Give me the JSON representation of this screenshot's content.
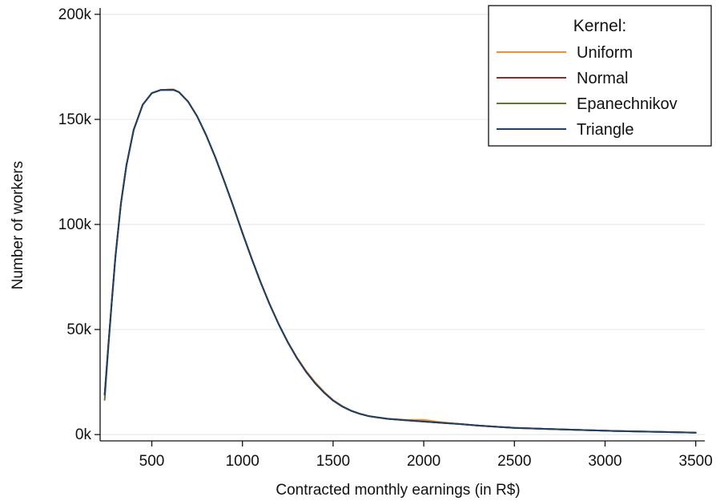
{
  "chart_data": {
    "type": "line",
    "xlabel": "Contracted monthly earnings (in R$)",
    "ylabel": "Number of workers",
    "xlim": [
      215,
      3550
    ],
    "ylim": [
      -3000,
      203000
    ],
    "x_ticks": [
      500,
      1000,
      1500,
      2000,
      2500,
      3000,
      3500
    ],
    "x_tick_labels": [
      "500",
      "1000",
      "1500",
      "2000",
      "2500",
      "3000",
      "3500"
    ],
    "y_ticks": [
      0,
      50000,
      100000,
      150000,
      200000
    ],
    "y_tick_labels": [
      "0k",
      "50k",
      "100k",
      "150k",
      "200k"
    ],
    "grid": true,
    "legend": {
      "title": "Kernel:",
      "position": "top-right"
    },
    "series": [
      {
        "name": "Uniform",
        "color": "#f28e2b",
        "x": [
          240,
          260,
          280,
          300,
          330,
          360,
          400,
          450,
          500,
          550,
          600,
          620,
          650,
          700,
          750,
          800,
          850,
          900,
          950,
          1000,
          1050,
          1100,
          1150,
          1200,
          1250,
          1300,
          1350,
          1400,
          1450,
          1500,
          1550,
          1600,
          1650,
          1700,
          1800,
          1850,
          1900,
          1950,
          2000,
          2050,
          2100,
          2200,
          2300,
          2400,
          2500,
          2700,
          2900,
          3100,
          3300,
          3500
        ],
        "y": [
          19000,
          42000,
          64000,
          85000,
          110000,
          128000,
          145000,
          157000,
          162500,
          164000,
          164200,
          164300,
          163000,
          158500,
          151500,
          142500,
          132000,
          120500,
          108500,
          96000,
          84000,
          72500,
          62000,
          52500,
          44000,
          36800,
          30500,
          25000,
          20400,
          16500,
          13600,
          11400,
          9800,
          8700,
          7600,
          7300,
          7000,
          7000,
          7000,
          6400,
          5900,
          5000,
          4300,
          3700,
          3100,
          2600,
          2100,
          1600,
          1300,
          900
        ]
      },
      {
        "name": "Normal",
        "color": "#8b2c2c",
        "x": [
          240,
          260,
          280,
          300,
          330,
          360,
          400,
          450,
          500,
          550,
          600,
          620,
          650,
          700,
          750,
          800,
          850,
          900,
          950,
          1000,
          1050,
          1100,
          1150,
          1200,
          1250,
          1300,
          1350,
          1400,
          1450,
          1500,
          1550,
          1600,
          1650,
          1700,
          1800,
          1900,
          2000,
          2100,
          2200,
          2300,
          2400,
          2500,
          2700,
          2900,
          3100,
          3300,
          3500
        ],
        "y": [
          19000,
          42000,
          64000,
          85000,
          110000,
          128000,
          145000,
          157000,
          162500,
          164000,
          164200,
          164100,
          163000,
          158500,
          151500,
          142500,
          132000,
          120500,
          108500,
          96000,
          84000,
          72500,
          62000,
          52500,
          44000,
          36500,
          30000,
          24500,
          20000,
          16200,
          13400,
          11300,
          9800,
          8700,
          7500,
          6800,
          6200,
          5600,
          5000,
          4300,
          3700,
          3200,
          2600,
          2100,
          1600,
          1300,
          900
        ]
      },
      {
        "name": "Epanechnikov",
        "color": "#5f7a2e",
        "x": [
          240,
          260,
          280,
          300,
          330,
          360,
          400,
          450,
          500,
          550,
          600,
          620,
          650,
          700,
          750,
          800,
          850,
          900,
          950,
          1000,
          1050,
          1100,
          1150,
          1200,
          1250,
          1300,
          1350,
          1400,
          1450,
          1500,
          1550,
          1600,
          1650,
          1700,
          1800,
          1900,
          2000,
          2100,
          2200,
          2300,
          2400,
          2500,
          2700,
          2900,
          3100,
          3300,
          3500
        ],
        "y": [
          16500,
          41000,
          63500,
          84500,
          110000,
          128000,
          145000,
          157000,
          162500,
          164000,
          164000,
          164000,
          163000,
          158500,
          151500,
          142500,
          132000,
          120500,
          108500,
          96000,
          84000,
          72500,
          62000,
          52500,
          44000,
          36500,
          30000,
          24500,
          20000,
          16200,
          13400,
          11300,
          9800,
          8700,
          7500,
          6800,
          6200,
          5600,
          5000,
          4300,
          3700,
          3200,
          2600,
          2100,
          1600,
          1300,
          900
        ]
      },
      {
        "name": "Triangle",
        "color": "#1f3f66",
        "x": [
          240,
          260,
          280,
          300,
          330,
          360,
          400,
          450,
          500,
          550,
          600,
          620,
          650,
          700,
          750,
          800,
          850,
          900,
          950,
          1000,
          1050,
          1100,
          1150,
          1200,
          1250,
          1300,
          1350,
          1400,
          1450,
          1500,
          1550,
          1600,
          1650,
          1700,
          1800,
          1900,
          2000,
          2100,
          2200,
          2300,
          2400,
          2500,
          2700,
          2900,
          3100,
          3300,
          3500
        ],
        "y": [
          19000,
          42000,
          64000,
          85000,
          110000,
          128000,
          145000,
          157000,
          162500,
          164000,
          164000,
          164000,
          163000,
          158500,
          151500,
          142500,
          132000,
          120500,
          108500,
          96000,
          84000,
          72500,
          62000,
          52500,
          44000,
          36500,
          30000,
          24500,
          20000,
          16200,
          13400,
          11300,
          9800,
          8700,
          7500,
          6800,
          6200,
          5600,
          5000,
          4300,
          3700,
          3200,
          2600,
          2100,
          1600,
          1300,
          900
        ]
      }
    ]
  }
}
